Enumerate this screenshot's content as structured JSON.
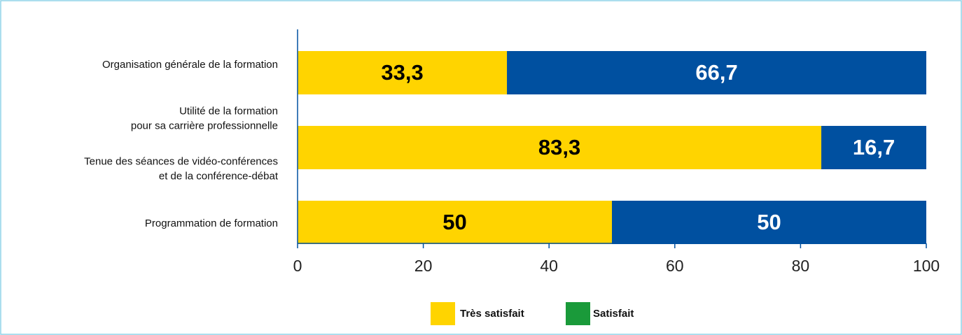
{
  "chart_data": {
    "type": "stacked-bar-horizontal",
    "categories": [
      [
        "Organisation générale de la formation"
      ],
      [
        "Utilité de la formation",
        "pour sa carrière professionnelle"
      ],
      [
        "Tenue des séances de vidéo-conférences",
        "et de la conférence-débat"
      ],
      [
        "Programmation de formation"
      ]
    ],
    "series": [
      {
        "name": "Très satisfait",
        "color": "#ffd400",
        "legend_color": "#ffd400",
        "text_color": "#000000",
        "values": [
          33.3,
          83.3,
          null,
          50
        ],
        "value_labels": [
          "33,3",
          "83,3",
          null,
          "50"
        ]
      },
      {
        "name": "Satisfait",
        "color": "#0050a0",
        "legend_color": "#1a9a3a",
        "text_color": "#ffffff",
        "values": [
          66.7,
          16.7,
          null,
          50
        ],
        "value_labels": [
          "66,7",
          "16,7",
          null,
          "50"
        ]
      }
    ],
    "xlim": [
      0,
      100
    ],
    "xticks": [
      0,
      20,
      40,
      60,
      80,
      100
    ]
  }
}
